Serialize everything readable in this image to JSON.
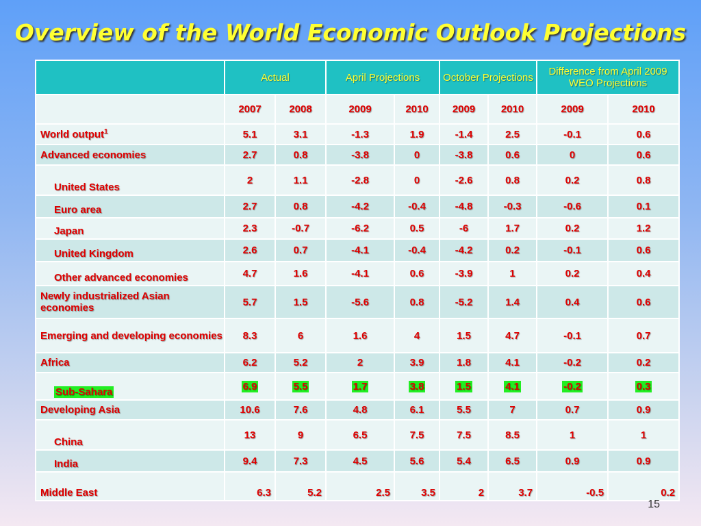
{
  "title": "Overview of the World Economic Outlook Projections",
  "page_number": "15",
  "header": {
    "groups": [
      "Actual",
      "April Projections",
      "October Projections",
      "Difference from April 2009 WEO Projections"
    ],
    "years": [
      "2007",
      "2008",
      "2009",
      "2010",
      "2009",
      "2010",
      "2009",
      "2010"
    ]
  },
  "rows": [
    {
      "label": "World output",
      "sup": "1",
      "values": [
        "5.1",
        "3.1",
        "-1.3",
        "1.9",
        "-1.4",
        "2.5",
        "-0.1",
        "0.6"
      ]
    },
    {
      "label": "Advanced economies",
      "values": [
        "2.7",
        "0.8",
        "-3.8",
        "0",
        "-3.8",
        "0.6",
        "0",
        "0.6"
      ]
    },
    {
      "label": "United States",
      "values": [
        "2",
        "1.1",
        "-2.8",
        "0",
        "-2.6",
        "0.8",
        "0.2",
        "0.8"
      ]
    },
    {
      "label": "Euro area",
      "values": [
        "2.7",
        "0.8",
        "-4.2",
        "-0.4",
        "-4.8",
        "-0.3",
        "-0.6",
        "0.1"
      ]
    },
    {
      "label": "Japan",
      "values": [
        "2.3",
        "-0.7",
        "-6.2",
        "0.5",
        "-6",
        "1.7",
        "0.2",
        "1.2"
      ]
    },
    {
      "label": "United Kingdom",
      "values": [
        "2.6",
        "0.7",
        "-4.1",
        "-0.4",
        "-4.2",
        "0.2",
        "-0.1",
        "0.6"
      ]
    },
    {
      "label": "Other advanced economies",
      "values": [
        "4.7",
        "1.6",
        "-4.1",
        "0.6",
        "-3.9",
        "1",
        "0.2",
        "0.4"
      ]
    },
    {
      "label": "Newly industrialized Asian economies",
      "values": [
        "5.7",
        "1.5",
        "-5.6",
        "0.8",
        "-5.2",
        "1.4",
        "0.4",
        "0.6"
      ]
    },
    {
      "label": "Emerging and developing economies",
      "values": [
        "8.3",
        "6",
        "1.6",
        "4",
        "1.5",
        "4.7",
        "-0.1",
        "0.7"
      ]
    },
    {
      "label": "Africa",
      "values": [
        "6.2",
        "5.2",
        "2",
        "3.9",
        "1.8",
        "4.1",
        "-0.2",
        "0.2"
      ]
    },
    {
      "label": "Sub-Sahara",
      "values": [
        "6.9",
        "5.5",
        "1.7",
        "3.8",
        "1.5",
        "4.1",
        "-0.2",
        "0.3"
      ],
      "highlight_color": "#22ee22"
    },
    {
      "label": "Developing Asia",
      "values": [
        "10.6",
        "7.6",
        "4.8",
        "6.1",
        "5.5",
        "7",
        "0.7",
        "0.9"
      ]
    },
    {
      "label": "China",
      "values": [
        "13",
        "9",
        "6.5",
        "7.5",
        "7.5",
        "8.5",
        "1",
        "1"
      ]
    },
    {
      "label": "India",
      "values": [
        "9.4",
        "7.3",
        "4.5",
        "5.6",
        "5.4",
        "6.5",
        "0.9",
        "0.9"
      ]
    },
    {
      "label": "Middle East",
      "values": [
        "6.3",
        "5.2",
        "2.5",
        "3.5",
        "2",
        "3.7",
        "-0.5",
        "0.2"
      ]
    }
  ],
  "colors": {
    "header_bg": "#1fc1c3",
    "header_text": "#ffff33",
    "cell_text": "#e00000",
    "title": "#ffff33"
  }
}
